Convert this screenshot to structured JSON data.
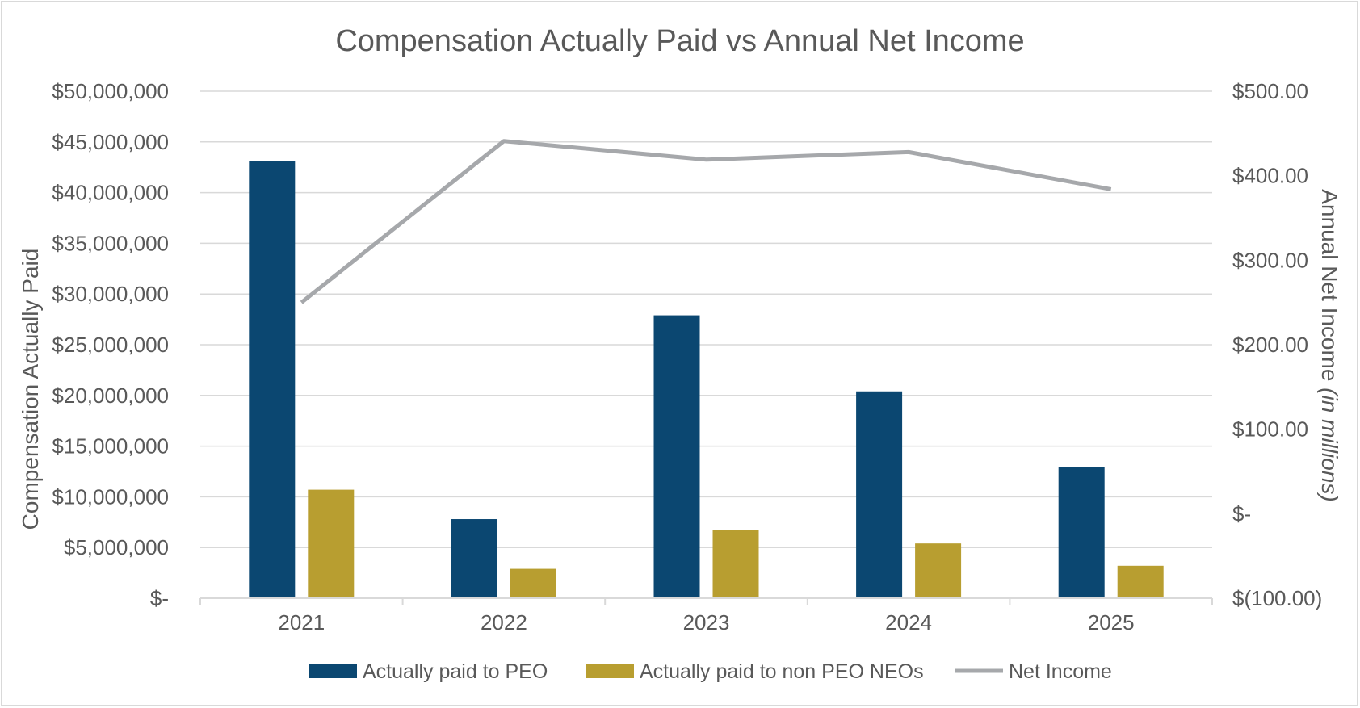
{
  "chart_data": {
    "type": "bar",
    "title": "Compensation Actually Paid vs Annual Net Income",
    "categories": [
      "2021",
      "2022",
      "2023",
      "2024",
      "2025"
    ],
    "series": [
      {
        "name": "Actually paid to PEO",
        "type": "bar",
        "axis": "left",
        "color": "#0b4771",
        "values": [
          43100000,
          7800000,
          27900000,
          20400000,
          12900000
        ]
      },
      {
        "name": "Actually paid to non PEO NEOs",
        "type": "bar",
        "axis": "left",
        "color": "#b89e30",
        "values": [
          10700000,
          2900000,
          6700000,
          5400000,
          3200000
        ]
      },
      {
        "name": "Net Income",
        "type": "line",
        "axis": "right",
        "color": "#a6a8ab",
        "values": [
          250,
          441,
          419,
          428,
          384
        ]
      }
    ],
    "ylabel": "Compensation Actually Paid",
    "y2label": "Annual Net Income",
    "y2label_italic": "(in millions)",
    "ylim": [
      0,
      50000000
    ],
    "y2lim": [
      -100,
      500
    ],
    "y_ticks": [
      "$50,000,000",
      "$45,000,000",
      "$40,000,000",
      "$35,000,000",
      "$30,000,000",
      "$25,000,000",
      "$20,000,000",
      "$15,000,000",
      "$10,000,000",
      "$5,000,000",
      "$-"
    ],
    "y2_ticks": [
      "$500.00",
      "$400.00",
      "$300.00",
      "$200.00",
      "$100.00",
      "$-",
      "$(100.00)"
    ],
    "grid": true,
    "legend_position": "bottom"
  }
}
